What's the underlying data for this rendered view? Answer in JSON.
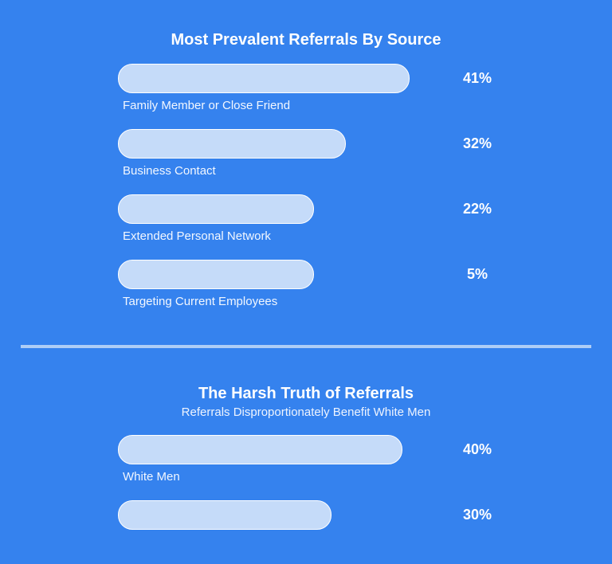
{
  "chart_data": [
    {
      "type": "bar",
      "orientation": "horizontal",
      "title": "Most Prevalent Referrals By Source",
      "subtitle": "",
      "categories": [
        "Family Member or Close Friend",
        "Business Contact",
        "Extended Personal Network",
        "Targeting Current Employees"
      ],
      "values": [
        41,
        32,
        22,
        5
      ],
      "value_labels": [
        "41%",
        "32%",
        "22%",
        "5%"
      ],
      "unit": "%",
      "bar_color": "#c5dbf9",
      "grid": false
    },
    {
      "type": "bar",
      "orientation": "horizontal",
      "title": "The Harsh Truth of Referrals",
      "subtitle": "Referrals Disproportionately Benefit White Men",
      "categories": [
        "White Men",
        ""
      ],
      "values": [
        40,
        30
      ],
      "value_labels": [
        "40%",
        "30%"
      ],
      "unit": "%",
      "bar_color": "#c5dbf9",
      "grid": false
    }
  ],
  "colors": {
    "background": "#3582ee",
    "bar_fill": "#c5dbf9",
    "divider": "#aecdf6",
    "text": "#ffffff"
  }
}
